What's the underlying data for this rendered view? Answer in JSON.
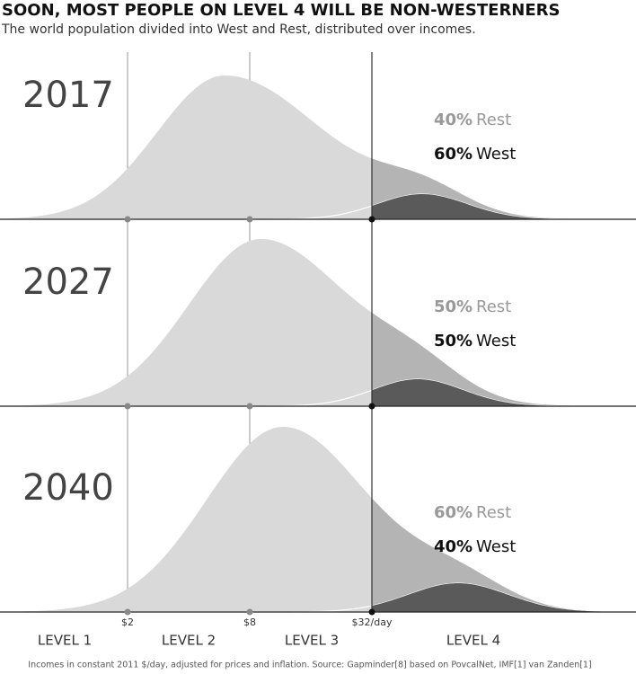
{
  "title": "SOON, MOST PEOPLE ON LEVEL 4 WILL BE NON-WESTERNERS",
  "subtitle": "The world population divided into West and Rest, distributed over incomes.",
  "panels": [
    {
      "year": "2017",
      "rest": {
        "share": "40%",
        "name": "Rest"
      },
      "west": {
        "share": "60%",
        "name": "West"
      }
    },
    {
      "year": "2027",
      "rest": {
        "share": "50%",
        "name": "Rest"
      },
      "west": {
        "share": "50%",
        "name": "West"
      }
    },
    {
      "year": "2040",
      "rest": {
        "share": "60%",
        "name": "Rest"
      },
      "west": {
        "share": "40%",
        "name": "West"
      }
    }
  ],
  "income_ticks": [
    "$2",
    "$8",
    "$32/day"
  ],
  "levels": [
    "LEVEL 1",
    "LEVEL 2",
    "LEVEL 3",
    "LEVEL 4"
  ],
  "footnote": "Incomes in constant 2011 $/day, adjusted for prices and inflation. Source: Gapminder[8] based on PovcalNet, IMF[1] van Zanden[1]"
}
